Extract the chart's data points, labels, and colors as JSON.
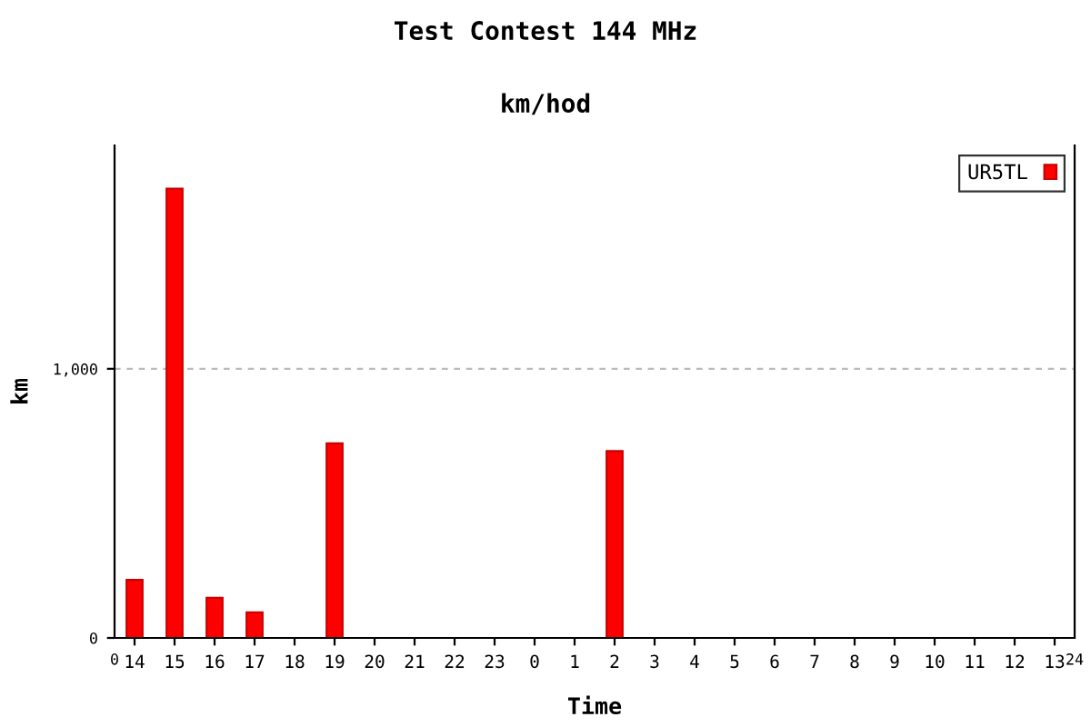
{
  "chart_data": {
    "type": "bar",
    "title": "Test Contest 144 MHz",
    "subtitle": "km/hod",
    "xlabel": "Time",
    "ylabel": "km",
    "categories": [
      "14",
      "15",
      "16",
      "17",
      "18",
      "19",
      "20",
      "21",
      "22",
      "23",
      "0",
      "1",
      "2",
      "3",
      "4",
      "5",
      "6",
      "7",
      "8",
      "9",
      "10",
      "11",
      "12",
      "13"
    ],
    "series": [
      {
        "name": "UR5TL",
        "color": "#ff0000",
        "values": [
          216,
          1669,
          149,
          95,
          null,
          723,
          null,
          null,
          null,
          null,
          null,
          null,
          694,
          null,
          null,
          null,
          null,
          null,
          null,
          null,
          null,
          null,
          null,
          null
        ]
      }
    ],
    "ylim": [
      0,
      1830
    ],
    "yticks": [
      0,
      {
        "value": 1000,
        "label": "1,000"
      }
    ],
    "grid": "y",
    "legend": "top right",
    "annotations": [
      "0",
      "24"
    ]
  }
}
